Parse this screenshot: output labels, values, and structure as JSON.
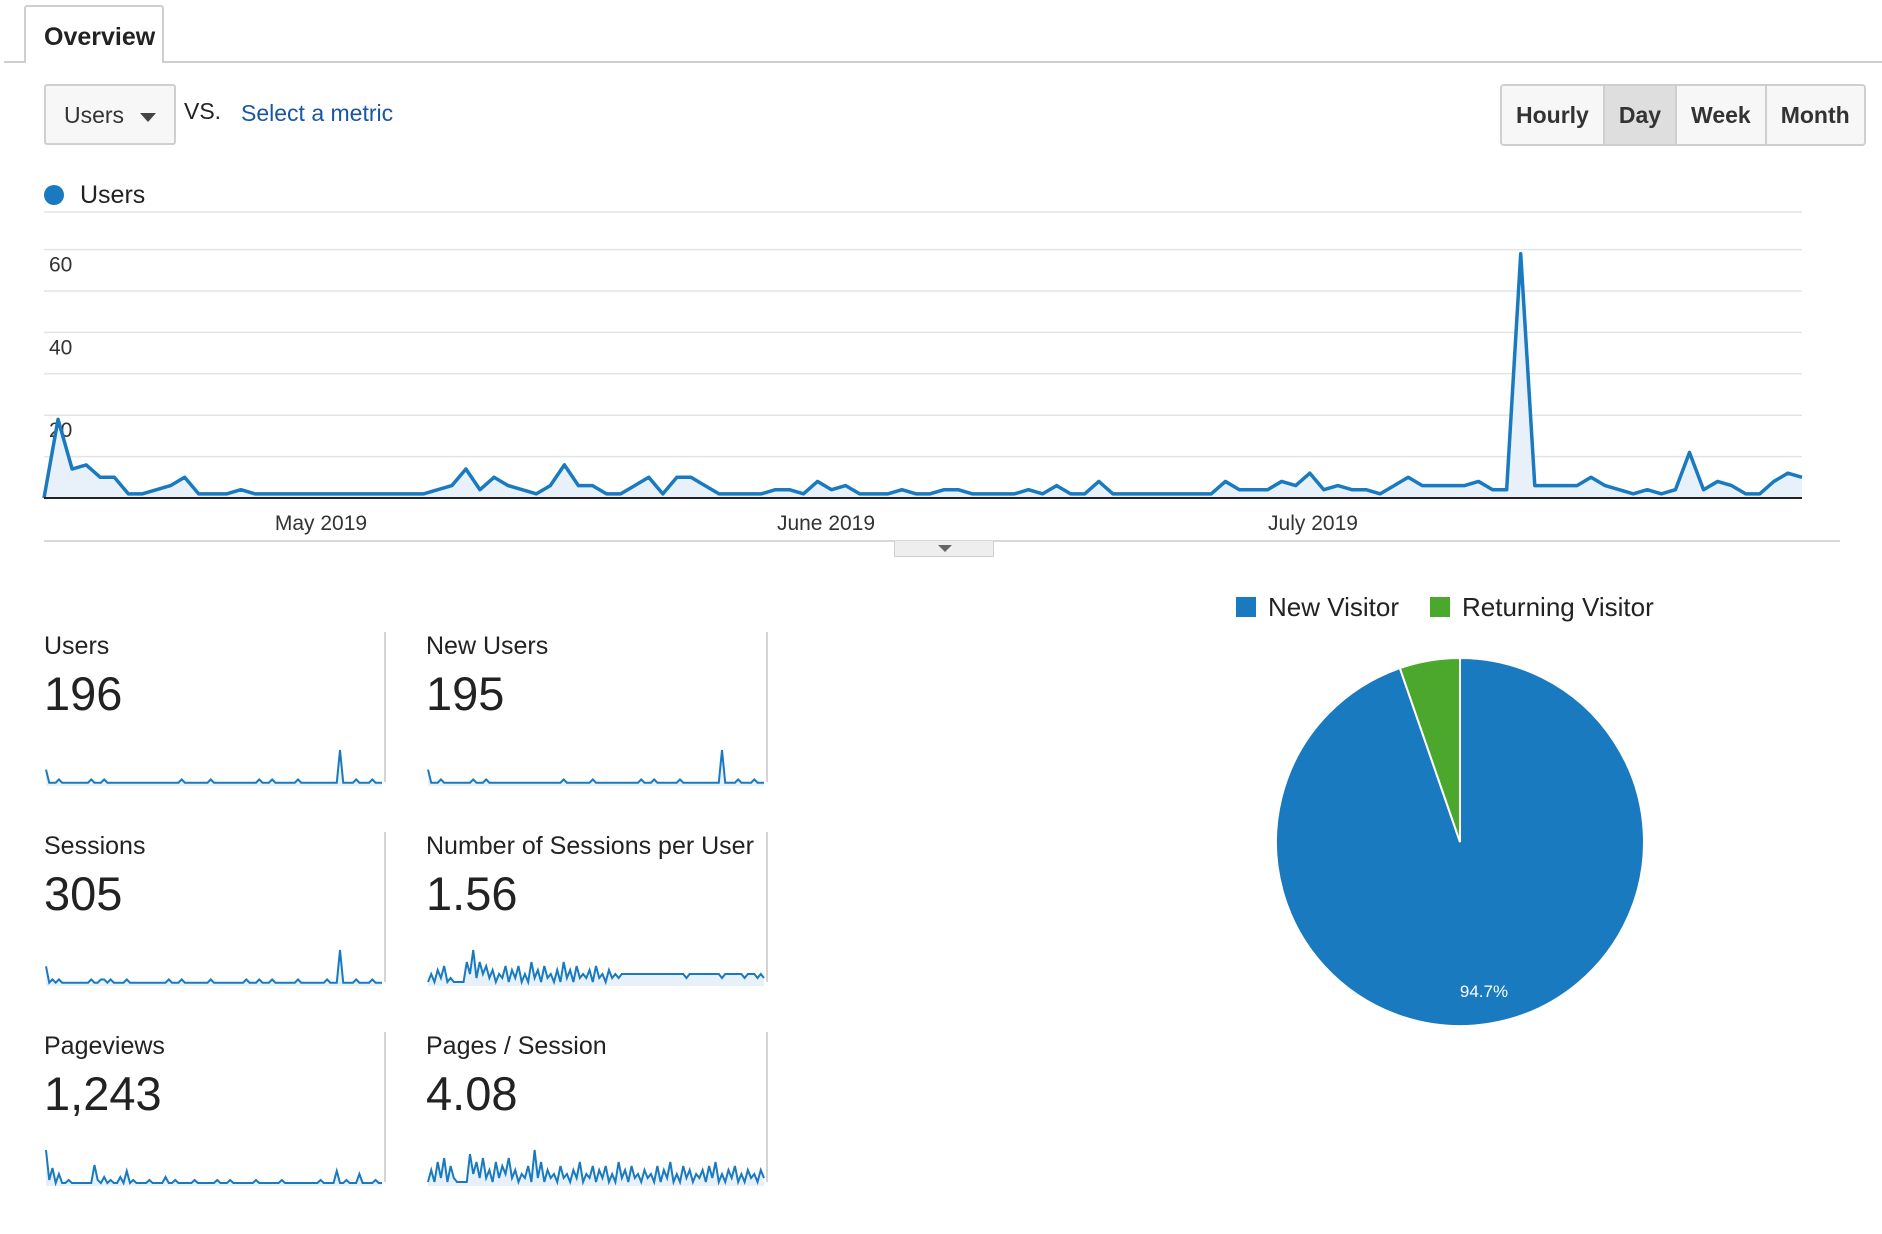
{
  "tabs": {
    "overview": "Overview"
  },
  "metric_selector": {
    "selected": "Users",
    "vs_label": "VS.",
    "select_metric_link": "Select a metric"
  },
  "period_buttons": [
    "Hourly",
    "Day",
    "Week",
    "Month"
  ],
  "active_period": "Day",
  "legend": {
    "series_label": "Users",
    "series_color": "#1a7abf"
  },
  "chart_data": [
    {
      "type": "area",
      "series": [
        {
          "name": "Users",
          "values": [
            0,
            19,
            7,
            8,
            5,
            5,
            1,
            1,
            2,
            3,
            5,
            1,
            1,
            1,
            2,
            1,
            1,
            1,
            1,
            1,
            1,
            1,
            1,
            1,
            1,
            1,
            1,
            1,
            2,
            3,
            7,
            2,
            5,
            3,
            2,
            1,
            3,
            8,
            3,
            3,
            1,
            1,
            3,
            5,
            1,
            5,
            5,
            3,
            1,
            1,
            1,
            1,
            2,
            2,
            1,
            4,
            2,
            3,
            1,
            1,
            1,
            2,
            1,
            1,
            2,
            2,
            1,
            1,
            1,
            1,
            2,
            1,
            3,
            1,
            1,
            4,
            1,
            1,
            1,
            1,
            1,
            1,
            1,
            1,
            4,
            2,
            2,
            2,
            4,
            3,
            6,
            2,
            3,
            2,
            2,
            1,
            3,
            5,
            3,
            3,
            3,
            3,
            4,
            2,
            2,
            59,
            3,
            3,
            3,
            3,
            5,
            3,
            2,
            1,
            2,
            1,
            2,
            11,
            2,
            4,
            3,
            1,
            1,
            4,
            6,
            5
          ]
        }
      ],
      "x_tick_labels": [
        "May 2019",
        "June 2019",
        "July 2019"
      ],
      "y_tick_labels": [
        "20",
        "40",
        "60"
      ],
      "ylim": [
        0,
        60
      ],
      "grid": true
    },
    {
      "type": "pie",
      "categories": [
        "New Visitor",
        "Returning Visitor"
      ],
      "values": [
        94.7,
        5.3
      ],
      "colors": [
        "#1a7abf",
        "#4ca82d"
      ],
      "data_labels": [
        "94.7%",
        ""
      ]
    }
  ],
  "scorecards": [
    {
      "name": "Users",
      "value": "196",
      "spark": [
        5,
        1,
        1,
        1,
        2,
        1,
        1,
        1,
        1,
        1,
        1,
        1,
        1,
        1,
        2,
        1,
        1,
        1,
        2,
        1,
        1,
        1,
        1,
        1,
        1,
        1,
        1,
        1,
        1,
        1,
        1,
        1,
        1,
        1,
        1,
        1,
        1,
        1,
        1,
        1,
        1,
        1,
        2,
        1,
        1,
        1,
        1,
        1,
        1,
        1,
        1,
        2,
        1,
        1,
        1,
        1,
        1,
        1,
        1,
        1,
        1,
        1,
        1,
        1,
        1,
        1,
        2,
        1,
        1,
        1,
        2,
        1,
        1,
        1,
        1,
        1,
        1,
        1,
        2,
        1,
        1,
        1,
        1,
        1,
        1,
        1,
        1,
        1,
        1,
        1,
        1,
        11,
        1,
        1,
        1,
        1,
        2,
        1,
        1,
        1,
        1,
        2,
        1,
        1,
        1
      ]
    },
    {
      "name": "New Users",
      "value": "195",
      "spark": [
        5,
        1,
        1,
        1,
        2,
        1,
        1,
        1,
        1,
        1,
        1,
        1,
        1,
        1,
        2,
        1,
        1,
        1,
        2,
        1,
        1,
        1,
        1,
        1,
        1,
        1,
        1,
        1,
        1,
        1,
        1,
        1,
        1,
        1,
        1,
        1,
        1,
        1,
        1,
        1,
        1,
        1,
        2,
        1,
        1,
        1,
        1,
        1,
        1,
        1,
        1,
        2,
        1,
        1,
        1,
        1,
        1,
        1,
        1,
        1,
        1,
        1,
        1,
        1,
        1,
        1,
        2,
        1,
        1,
        1,
        2,
        1,
        1,
        1,
        1,
        1,
        1,
        1,
        2,
        1,
        1,
        1,
        1,
        1,
        1,
        1,
        1,
        1,
        1,
        1,
        1,
        11,
        1,
        1,
        1,
        1,
        2,
        1,
        1,
        1,
        1,
        2,
        1,
        1,
        1
      ]
    },
    {
      "name": "Sessions",
      "value": "305",
      "spark": [
        6,
        1,
        2,
        1,
        2,
        1,
        1,
        1,
        1,
        1,
        1,
        1,
        1,
        1,
        2,
        1,
        1,
        2,
        2,
        1,
        2,
        1,
        1,
        1,
        1,
        2,
        1,
        1,
        1,
        1,
        1,
        1,
        1,
        1,
        1,
        1,
        1,
        1,
        2,
        1,
        1,
        1,
        2,
        1,
        1,
        1,
        1,
        1,
        1,
        1,
        1,
        2,
        1,
        1,
        1,
        1,
        1,
        1,
        1,
        1,
        1,
        1,
        2,
        1,
        1,
        1,
        2,
        1,
        1,
        1,
        2,
        1,
        1,
        1,
        1,
        1,
        1,
        1,
        2,
        1,
        1,
        1,
        1,
        1,
        1,
        1,
        1,
        2,
        1,
        1,
        1,
        11,
        1,
        1,
        1,
        1,
        2,
        1,
        1,
        1,
        1,
        2,
        1,
        1,
        1
      ]
    },
    {
      "name": "Number of Sessions per User",
      "value": "1.56",
      "spark": [
        1,
        3,
        1,
        4,
        2,
        5,
        1,
        2,
        1,
        1,
        1,
        1,
        6,
        3,
        9,
        2,
        6,
        3,
        5,
        2,
        4,
        1,
        3,
        2,
        5,
        1,
        4,
        2,
        5,
        1,
        3,
        1,
        6,
        2,
        4,
        1,
        5,
        2,
        3,
        1,
        4,
        1,
        6,
        2,
        4,
        1,
        5,
        2,
        3,
        2,
        4,
        1,
        5,
        2,
        3,
        1,
        4,
        2,
        3,
        2,
        3,
        3,
        3,
        3,
        3,
        3,
        3,
        3,
        3,
        3,
        3,
        3,
        3,
        3,
        3,
        3,
        3,
        3,
        3,
        3,
        2,
        3,
        3,
        3,
        3,
        3,
        3,
        3,
        3,
        3,
        3,
        2,
        3,
        3,
        3,
        3,
        3,
        3,
        2,
        3,
        3,
        3,
        2,
        3,
        2
      ]
    },
    {
      "name": "Pageviews",
      "value": "1,243",
      "spark": [
        12,
        2,
        6,
        1,
        4,
        1,
        1,
        2,
        1,
        1,
        1,
        1,
        1,
        1,
        1,
        7,
        2,
        1,
        3,
        1,
        2,
        1,
        1,
        3,
        1,
        5,
        1,
        2,
        1,
        1,
        1,
        1,
        2,
        1,
        1,
        1,
        1,
        3,
        1,
        1,
        2,
        1,
        1,
        1,
        1,
        1,
        2,
        1,
        1,
        1,
        1,
        1,
        1,
        2,
        1,
        1,
        1,
        2,
        1,
        1,
        1,
        1,
        1,
        1,
        1,
        2,
        1,
        1,
        1,
        1,
        1,
        1,
        1,
        2,
        1,
        1,
        1,
        1,
        1,
        1,
        1,
        1,
        1,
        1,
        1,
        2,
        1,
        1,
        1,
        1,
        5,
        1,
        1,
        2,
        1,
        1,
        1,
        4,
        1,
        1,
        1,
        1,
        2,
        1,
        1
      ]
    },
    {
      "name": "Pages / Session",
      "value": "4.08",
      "spark": [
        1,
        4,
        1,
        6,
        2,
        7,
        1,
        5,
        2,
        1,
        1,
        1,
        1,
        8,
        3,
        6,
        2,
        7,
        2,
        4,
        1,
        6,
        2,
        5,
        3,
        7,
        2,
        4,
        1,
        3,
        2,
        5,
        1,
        9,
        2,
        6,
        1,
        4,
        2,
        3,
        1,
        5,
        2,
        3,
        1,
        4,
        2,
        6,
        1,
        3,
        2,
        5,
        1,
        4,
        2,
        5,
        1,
        3,
        1,
        6,
        2,
        4,
        1,
        5,
        2,
        3,
        1,
        4,
        2,
        3,
        1,
        5,
        1,
        4,
        2,
        6,
        1,
        3,
        1,
        5,
        2,
        4,
        1,
        3,
        2,
        4,
        1,
        5,
        2,
        6,
        1,
        3,
        1,
        4,
        2,
        5,
        1,
        3,
        1,
        4,
        2,
        3,
        1,
        4,
        2
      ]
    }
  ]
}
